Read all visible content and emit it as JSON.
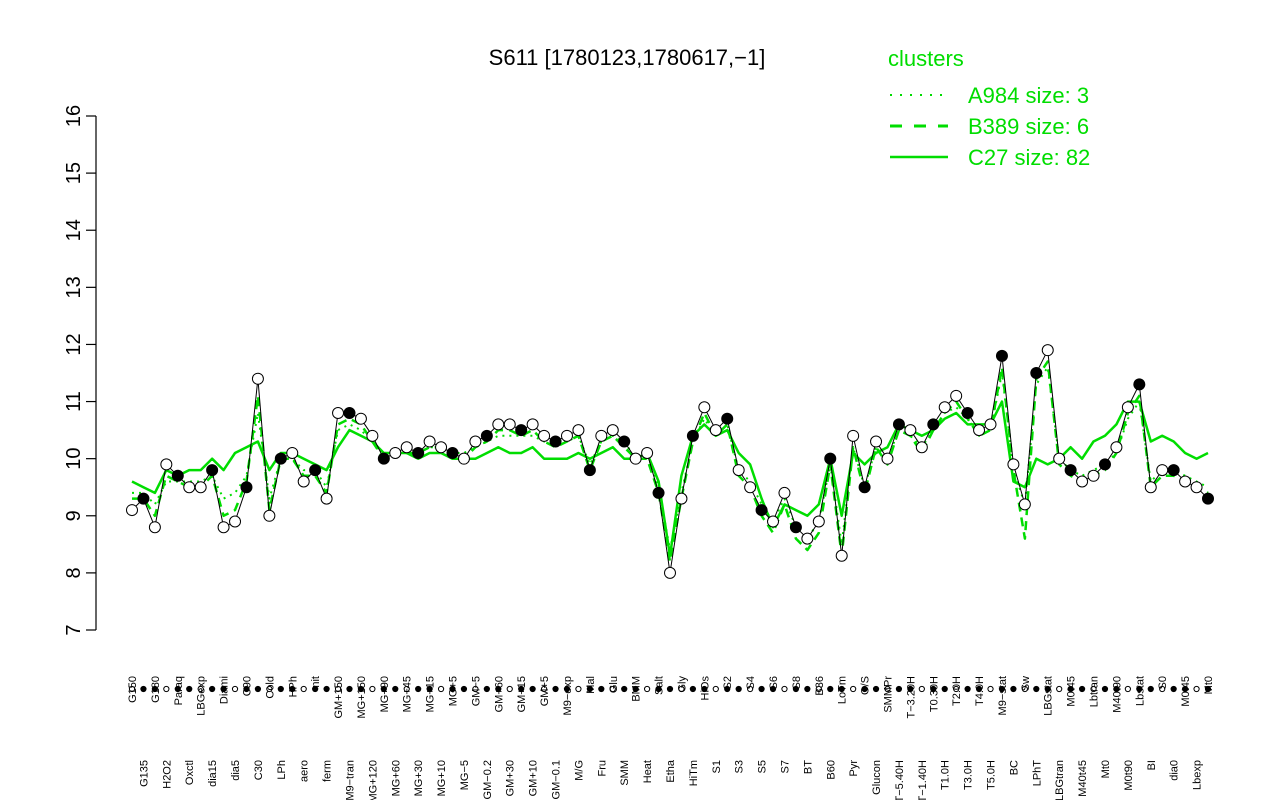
{
  "chart_data": {
    "type": "line",
    "title": "S611 [1780123,1780617,−1]",
    "xlabel": "",
    "ylabel": "",
    "ylim": [
      7,
      16
    ],
    "yticks": [
      7,
      8,
      9,
      10,
      11,
      12,
      13,
      14,
      15,
      16
    ],
    "x_tick_labels": [
      "G150",
      "G135",
      "G180",
      "H2O2",
      "Paraq",
      "Oxctl",
      "LBGexp",
      "dia15",
      "Diami",
      "dia5",
      "C90",
      "C30",
      "Cold",
      "LPh",
      "HPh",
      "aero",
      "nit",
      "ferm",
      "GM+150",
      "M9−tran",
      "MG+150",
      "MG+120",
      "MG+90",
      "MG+60",
      "MG+45",
      "MG+30",
      "MG+15",
      "MG+10",
      "MG+5",
      "MG−5",
      "GM−5",
      "GM−0.2",
      "GM+60",
      "GM+30",
      "GM+15",
      "GM+10",
      "GM+5",
      "GM−0.1",
      "M9−exp",
      "M/G",
      "Mal",
      "Fru",
      "Glu",
      "SMM",
      "BMM",
      "Heat",
      "Salt",
      "Etha",
      "Gly",
      "HiTm",
      "HiOs",
      "S1",
      "S2",
      "S3",
      "S4",
      "S5",
      "S6",
      "S7",
      "S8",
      "BT",
      "B36",
      "B60",
      "LoTm",
      "Pyr",
      "G/S",
      "Glucon",
      "SMMPr",
      "T−5.40H",
      "T−3.20H",
      "T−1.40H",
      "T0.30H",
      "T1.0H",
      "T2.0H",
      "T3.0H",
      "T4.0H",
      "T5.0H",
      "M9−stat",
      "BC",
      "Sw",
      "LPhT",
      "LBGstat",
      "LBGtran",
      "M0t45",
      "M40t45",
      "Lbtran",
      "Mt0",
      "M40t90",
      "M0t90",
      "Lbstat",
      "BI",
      "S0",
      "dia0",
      "M0t45",
      "Lbexp",
      "Mt0"
    ],
    "series": [
      {
        "name": "",
        "style": "points",
        "values": [
          9.1,
          9.3,
          8.8,
          9.9,
          9.7,
          9.5,
          9.5,
          9.8,
          8.8,
          8.9,
          9.5,
          11.4,
          9.0,
          10.0,
          10.1,
          9.6,
          9.8,
          9.3,
          10.8,
          10.8,
          10.7,
          10.4,
          10.0,
          10.1,
          10.2,
          10.1,
          10.3,
          10.2,
          10.1,
          10.0,
          10.3,
          10.4,
          10.6,
          10.6,
          10.5,
          10.6,
          10.4,
          10.3,
          10.4,
          10.5,
          9.8,
          10.4,
          10.5,
          10.3,
          10.0,
          10.1,
          9.4,
          8.0,
          9.3,
          10.4,
          10.9,
          10.5,
          10.7,
          9.8,
          9.5,
          9.1,
          8.9,
          9.4,
          8.8,
          8.6,
          8.9,
          10.0,
          8.3,
          10.4,
          9.5,
          10.3,
          10.0,
          10.6,
          10.5,
          10.2,
          10.6,
          10.9,
          11.1,
          10.8,
          10.5,
          10.6,
          11.8,
          9.9,
          9.2,
          11.5,
          11.9,
          10.0,
          9.8,
          9.6,
          9.7,
          9.9,
          10.2,
          10.9,
          11.3,
          9.5,
          9.8,
          9.8,
          9.6,
          9.5,
          9.3
        ]
      },
      {
        "name": "A984 size: 3",
        "style": "dotted",
        "values": [
          9.4,
          9.4,
          9.2,
          9.6,
          9.6,
          9.6,
          9.6,
          9.7,
          9.3,
          9.4,
          9.7,
          10.8,
          9.3,
          10.0,
          10.0,
          9.8,
          9.8,
          9.5,
          10.5,
          10.6,
          10.5,
          10.3,
          10.0,
          10.1,
          10.1,
          10.1,
          10.2,
          10.2,
          10.1,
          10.1,
          10.2,
          10.3,
          10.4,
          10.4,
          10.4,
          10.4,
          10.3,
          10.3,
          10.3,
          10.4,
          9.9,
          10.3,
          10.4,
          10.3,
          10.0,
          10.1,
          9.5,
          8.4,
          9.4,
          10.3,
          10.7,
          10.4,
          10.6,
          9.8,
          9.6,
          9.2,
          8.9,
          9.3,
          8.8,
          8.6,
          8.9,
          9.9,
          8.5,
          10.2,
          9.5,
          10.2,
          10.0,
          10.5,
          10.4,
          10.2,
          10.5,
          10.8,
          10.9,
          10.7,
          10.4,
          10.5,
          11.5,
          9.8,
          9.2,
          11.3,
          11.6,
          10.0,
          9.8,
          9.7,
          9.8,
          9.9,
          10.1,
          10.7,
          11.0,
          9.6,
          9.8,
          9.8,
          9.7,
          9.6,
          9.5
        ]
      },
      {
        "name": "B389 size: 6",
        "style": "dashed",
        "values": [
          9.3,
          9.3,
          9.0,
          9.7,
          9.6,
          9.5,
          9.5,
          9.7,
          9.0,
          9.1,
          9.6,
          11.1,
          9.1,
          10.0,
          10.0,
          9.7,
          9.7,
          9.4,
          10.6,
          10.7,
          10.6,
          10.3,
          10.0,
          10.1,
          10.1,
          10.1,
          10.2,
          10.2,
          10.0,
          10.0,
          10.2,
          10.3,
          10.5,
          10.5,
          10.4,
          10.5,
          10.3,
          10.2,
          10.3,
          10.4,
          9.8,
          10.3,
          10.4,
          10.2,
          10.0,
          10.0,
          9.4,
          8.2,
          9.3,
          10.3,
          10.8,
          10.4,
          10.6,
          9.7,
          9.5,
          9.0,
          8.7,
          9.2,
          8.6,
          8.4,
          8.7,
          9.9,
          8.3,
          10.2,
          9.4,
          10.2,
          9.9,
          10.5,
          10.4,
          10.1,
          10.5,
          10.8,
          11.0,
          10.7,
          10.4,
          10.5,
          11.6,
          9.8,
          8.6,
          11.4,
          11.7,
          9.9,
          9.7,
          9.6,
          9.7,
          9.8,
          10.1,
          10.8,
          11.1,
          9.5,
          9.7,
          9.7,
          9.6,
          9.5,
          9.4
        ]
      },
      {
        "name": "C27 size: 82",
        "style": "solid",
        "values": [
          9.6,
          9.5,
          9.4,
          9.8,
          9.7,
          9.8,
          9.8,
          10.0,
          9.8,
          10.1,
          10.2,
          10.3,
          9.8,
          10.1,
          10.1,
          10.0,
          9.9,
          9.8,
          10.2,
          10.5,
          10.4,
          10.3,
          10.1,
          10.1,
          10.1,
          10.0,
          10.1,
          10.1,
          10.0,
          10.0,
          10.0,
          10.1,
          10.2,
          10.1,
          10.1,
          10.2,
          10.0,
          10.0,
          10.0,
          10.1,
          10.0,
          10.1,
          10.2,
          10.0,
          10.0,
          10.1,
          9.6,
          8.3,
          9.7,
          10.4,
          10.6,
          10.4,
          10.5,
          10.1,
          9.9,
          9.3,
          8.8,
          9.2,
          9.1,
          9.0,
          9.2,
          10.0,
          9.0,
          10.1,
          9.9,
          10.1,
          10.2,
          10.6,
          10.5,
          10.4,
          10.5,
          10.7,
          10.8,
          10.6,
          10.6,
          10.6,
          11.0,
          9.6,
          9.5,
          10.0,
          9.9,
          10.0,
          10.2,
          10.0,
          10.3,
          10.4,
          10.6,
          11.0,
          11.0,
          10.3,
          10.4,
          10.3,
          10.1,
          10.0,
          10.1
        ]
      }
    ],
    "legend": {
      "title": "clusters",
      "placement": "top-right",
      "entries": [
        "A984 size: 3",
        "B389 size: 6",
        "C27 size: 82"
      ]
    },
    "colors": {
      "cluster": "#00dd00",
      "points": "#000000",
      "axes": "#000000"
    },
    "grid": false
  }
}
